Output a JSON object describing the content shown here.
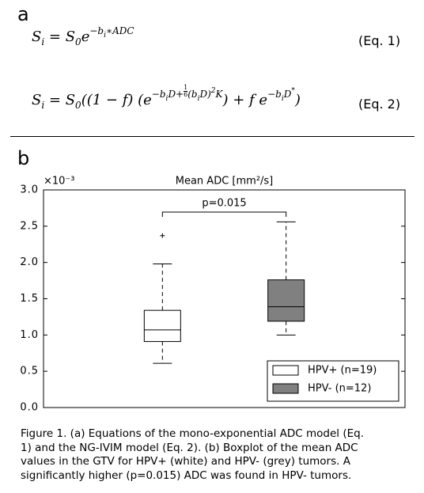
{
  "panel_a": {
    "label": "a",
    "equations": [
      {
        "number": "(Eq. 1)",
        "segments": [
          {
            "kind": "n",
            "text": "S"
          },
          {
            "kind": "sub",
            "text": "i"
          },
          {
            "kind": "n",
            "text": " = S"
          },
          {
            "kind": "sub",
            "text": "0"
          },
          {
            "kind": "n",
            "text": "e"
          },
          {
            "kind": "sup",
            "text": "−b"
          },
          {
            "kind": "supsub",
            "text": "i"
          },
          {
            "kind": "sup",
            "text": "∗ADC"
          }
        ]
      },
      {
        "number": "(Eq. 2)",
        "segments": [
          {
            "kind": "n",
            "text": "S"
          },
          {
            "kind": "sub",
            "text": "i"
          },
          {
            "kind": "n",
            "text": " = S"
          },
          {
            "kind": "sub",
            "text": "0"
          },
          {
            "kind": "n",
            "text": "((1 − f) (e"
          },
          {
            "kind": "sup",
            "text": "−b"
          },
          {
            "kind": "supsub",
            "text": "i"
          },
          {
            "kind": "sup",
            "text": "D+"
          },
          {
            "kind": "frac",
            "num": "1",
            "den": "6"
          },
          {
            "kind": "sup",
            "text": "(b"
          },
          {
            "kind": "supsub",
            "text": "i"
          },
          {
            "kind": "sup",
            "text": "D)"
          },
          {
            "kind": "supsup",
            "text": "2"
          },
          {
            "kind": "sup",
            "text": "K"
          },
          {
            "kind": "n",
            "text": ") + f e"
          },
          {
            "kind": "sup",
            "text": "−b"
          },
          {
            "kind": "supsub",
            "text": "i"
          },
          {
            "kind": "sup",
            "text": "D"
          },
          {
            "kind": "supsup",
            "text": "*"
          },
          {
            "kind": "n",
            "text": ")"
          }
        ]
      }
    ]
  },
  "panel_b": {
    "label": "b"
  },
  "chart_data": {
    "type": "box",
    "title": "Mean ADC [mm²/s]",
    "offset_text": "×10⁻³",
    "ylim": [
      0,
      3
    ],
    "yticks": [
      {
        "value": 0,
        "label": "0.0"
      },
      0.5,
      {
        "value": 1,
        "label": "1.0"
      },
      1.5,
      {
        "value": 2,
        "label": "2.0"
      },
      2.5,
      {
        "value": 3,
        "label": "3.0"
      }
    ],
    "series": [
      {
        "name": "HPV+ (n=19)",
        "color": "#ffffff",
        "whisker_low": 0.61,
        "q1": 0.91,
        "median": 1.07,
        "q3": 1.34,
        "whisker_high": 1.98,
        "outliers": [
          2.37
        ]
      },
      {
        "name": "HPV- (n=12)",
        "color": "#808080",
        "whisker_low": 1.0,
        "q1": 1.19,
        "median": 1.39,
        "q3": 1.76,
        "whisker_high": 2.56,
        "outliers": []
      }
    ],
    "annotation": "p=0.015",
    "legend": "lower right"
  },
  "caption": [
    "Figure 1. (a) Equations of the mono-exponential ADC model (Eq.",
    "1) and the NG-IVIM model (Eq. 2). (b) Boxplot of the mean ADC",
    "values in the GTV for HPV+ (white) and HPV- (grey) tumors. A",
    "significantly higher (p=0.015) ADC was found in HPV- tumors."
  ]
}
